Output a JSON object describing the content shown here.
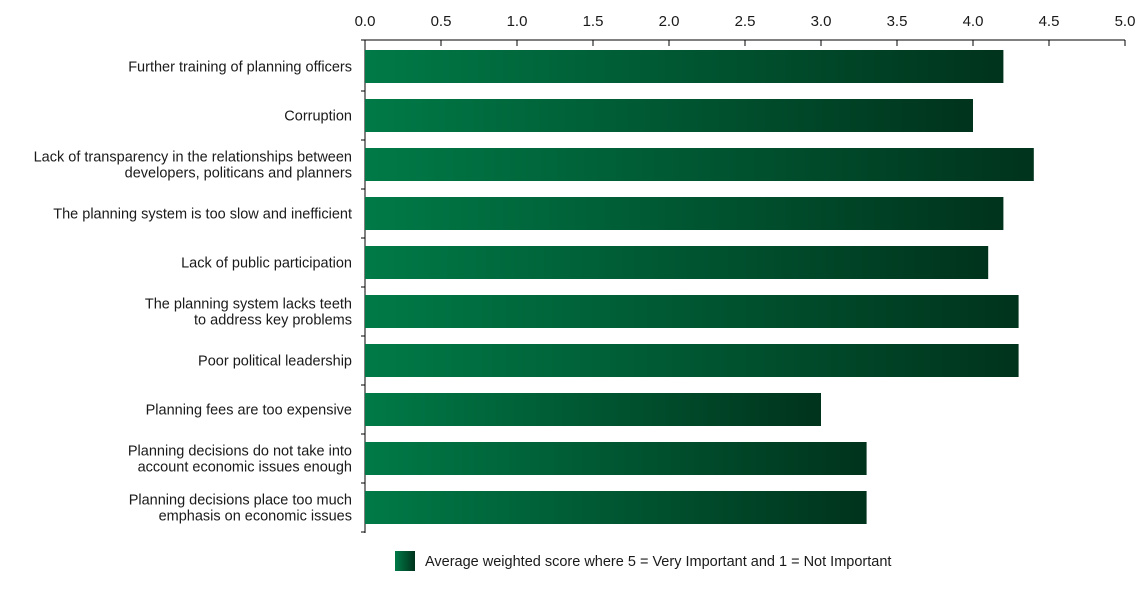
{
  "chart_data": {
    "type": "bar",
    "orientation": "horizontal",
    "title": "",
    "xlabel": "",
    "ylabel": "",
    "xlim": [
      0,
      5
    ],
    "x_ticks": [
      "0.0",
      "0.5",
      "1.0",
      "1.5",
      "2.0",
      "2.5",
      "3.0",
      "3.5",
      "4.0",
      "4.5",
      "5.0"
    ],
    "x_axis_position": "top",
    "grid": false,
    "categories": [
      [
        "Further training of planning officers"
      ],
      [
        "Corruption"
      ],
      [
        "Lack of transparency in the relationships between",
        "developers, politicans and planners"
      ],
      [
        "The planning system is too slow and inefficient"
      ],
      [
        "Lack of public participation"
      ],
      [
        "The planning system lacks teeth",
        "to address key problems"
      ],
      [
        "Poor political leadership"
      ],
      [
        "Planning fees are too expensive"
      ],
      [
        "Planning decisions do not take into",
        "account economic issues enough"
      ],
      [
        "Planning decisions place too much",
        "emphasis on economic issues"
      ]
    ],
    "series": [
      {
        "name": "Average weighted score where 5 = Very Important and 1 = Not Important",
        "values": [
          4.2,
          4.0,
          4.4,
          4.2,
          4.1,
          4.3,
          4.3,
          3.0,
          3.3,
          3.3
        ]
      }
    ],
    "legend_position": "bottom",
    "colors": {
      "bar_start": "#007a47",
      "bar_end": "#00331c",
      "axis": "#000000"
    }
  }
}
